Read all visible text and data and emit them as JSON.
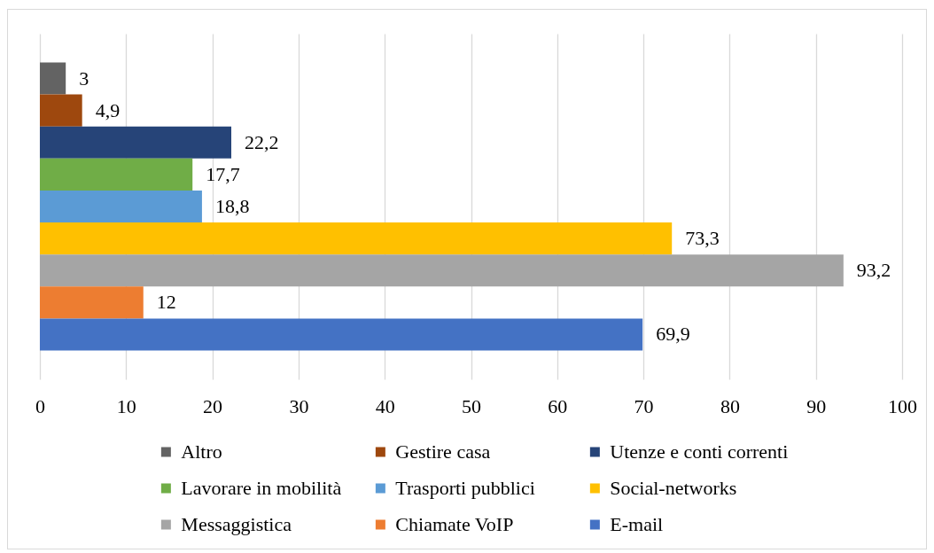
{
  "chart_data": {
    "type": "bar",
    "orientation": "horizontal",
    "categories": [
      null
    ],
    "series": [
      {
        "name": "Altro",
        "color": "#636363",
        "values": [
          3
        ],
        "value_labels": [
          "3"
        ]
      },
      {
        "name": "Gestire casa",
        "color": "#9e480e",
        "values": [
          4.9
        ],
        "value_labels": [
          "4,9"
        ]
      },
      {
        "name": "Utenze e conti correnti",
        "color": "#264478",
        "values": [
          22.2
        ],
        "value_labels": [
          "22,2"
        ]
      },
      {
        "name": "Lavorare in mobilità",
        "color": "#70ad47",
        "values": [
          17.7
        ],
        "value_labels": [
          "17,7"
        ]
      },
      {
        "name": "Trasporti pubblici",
        "color": "#5b9bd5",
        "values": [
          18.8
        ],
        "value_labels": [
          "18,8"
        ]
      },
      {
        "name": "Social-networks",
        "color": "#ffc000",
        "values": [
          73.3
        ],
        "value_labels": [
          "73,3"
        ]
      },
      {
        "name": "Messaggistica",
        "color": "#a5a5a5",
        "values": [
          93.2
        ],
        "value_labels": [
          "93,2"
        ]
      },
      {
        "name": "Chiamate VoIP",
        "color": "#ed7d31",
        "values": [
          12
        ],
        "value_labels": [
          "12"
        ]
      },
      {
        "name": "E-mail",
        "color": "#4472c4",
        "values": [
          69.9
        ],
        "value_labels": [
          "69,9"
        ]
      }
    ],
    "xlim": [
      0,
      100
    ],
    "xticks": [
      0,
      10,
      20,
      30,
      40,
      50,
      60,
      70,
      80,
      90,
      100
    ],
    "grid": "x",
    "legend": "bottom"
  }
}
